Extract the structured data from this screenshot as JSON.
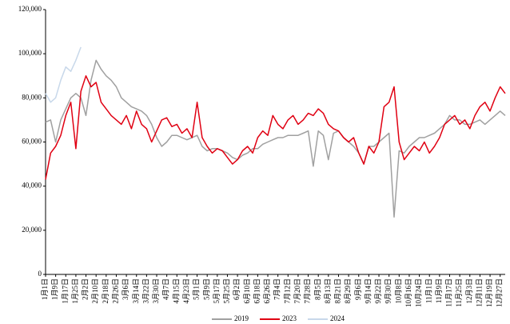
{
  "chart_data": {
    "type": "line",
    "categories": [
      "1月1日",
      null,
      "1月9日",
      null,
      "1月17日",
      null,
      "1月25日",
      null,
      "2月2日",
      null,
      "2月10日",
      null,
      "2月18日",
      null,
      "2月26日",
      null,
      "3月6日",
      null,
      "3月14日",
      null,
      "3月22日",
      null,
      "3月30日",
      null,
      "4月7日",
      null,
      "4月15日",
      null,
      "4月23日",
      null,
      "5月1日",
      null,
      "5月9日",
      null,
      "5月17日",
      null,
      "5月25日",
      null,
      "6月2日",
      null,
      "6月10日",
      null,
      "6月18日",
      null,
      "6月26日",
      null,
      "7月4日",
      null,
      "7月12日",
      null,
      "7月20日",
      null,
      "7月28日",
      null,
      "8月5日",
      null,
      "8月13日",
      null,
      "8月21日",
      null,
      "8月29日",
      null,
      "9月6日",
      null,
      "9月14日",
      null,
      "9月22日",
      null,
      "9月30日",
      null,
      "10月8日",
      null,
      "10月16日",
      null,
      "10月24日",
      null,
      "11月1日",
      null,
      "11月9日",
      null,
      "11月17日",
      null,
      "11月25日",
      null,
      "12月3日",
      null,
      "12月11日",
      null,
      "12月19日",
      null,
      "12月27日",
      null
    ],
    "series": [
      {
        "name": "2019",
        "color": "#a0a0a0",
        "values": [
          69000,
          70000,
          60000,
          70000,
          75000,
          80000,
          82000,
          80000,
          72000,
          88000,
          97000,
          93000,
          90000,
          88000,
          85000,
          80000,
          78000,
          76000,
          75000,
          74000,
          72000,
          68000,
          62000,
          58000,
          60000,
          63000,
          63000,
          62000,
          61000,
          62000,
          63000,
          58000,
          56000,
          57000,
          57000,
          56000,
          55000,
          53000,
          52000,
          54000,
          55000,
          57000,
          57000,
          59000,
          60000,
          61000,
          62000,
          62000,
          63000,
          63000,
          63000,
          64000,
          65000,
          49000,
          65000,
          63000,
          52000,
          64000,
          65000,
          62000,
          60000,
          58000,
          55000,
          50000,
          58000,
          58000,
          60000,
          62000,
          64000,
          26000,
          56000,
          55000,
          58000,
          60000,
          62000,
          62000,
          63000,
          64000,
          66000,
          68000,
          72000,
          70000,
          70000,
          68000,
          68000,
          69000,
          70000,
          68000,
          70000,
          72000,
          74000,
          72000
        ]
      },
      {
        "name": "2023",
        "color": "#e00012",
        "values": [
          43000,
          55000,
          58000,
          63000,
          72000,
          78000,
          57000,
          83000,
          90000,
          85000,
          87000,
          78000,
          75000,
          72000,
          70000,
          68000,
          72000,
          66000,
          74000,
          68000,
          66000,
          60000,
          65000,
          70000,
          71000,
          67000,
          68000,
          64000,
          66000,
          62000,
          78000,
          62000,
          58000,
          55000,
          57000,
          56000,
          53000,
          50000,
          52000,
          56000,
          58000,
          55000,
          62000,
          65000,
          63000,
          72000,
          68000,
          66000,
          70000,
          72000,
          68000,
          70000,
          73000,
          72000,
          75000,
          73000,
          68000,
          66000,
          65000,
          62000,
          60000,
          62000,
          55000,
          50000,
          58000,
          55000,
          60000,
          76000,
          78000,
          85000,
          60000,
          52000,
          55000,
          58000,
          56000,
          60000,
          55000,
          58000,
          62000,
          68000,
          70000,
          72000,
          68000,
          70000,
          66000,
          72000,
          76000,
          78000,
          74000,
          80000,
          85000,
          82000
        ]
      },
      {
        "name": "2024",
        "color": "#c8d8ea",
        "values": [
          82000,
          78000,
          80000,
          88000,
          94000,
          92000,
          97000,
          103000,
          null,
          null,
          null,
          null,
          null,
          null,
          null,
          null,
          null,
          null,
          null,
          null,
          null,
          null,
          null,
          null,
          null,
          null,
          null,
          null,
          null,
          null,
          null,
          null,
          null,
          null,
          null,
          null,
          null,
          null,
          null,
          null,
          null,
          null,
          null,
          null,
          null,
          null,
          null,
          null,
          null,
          null,
          null,
          null,
          null,
          null,
          null,
          null,
          null,
          null,
          null,
          null,
          null,
          null,
          null,
          null,
          null,
          null,
          null,
          null,
          null,
          null,
          null,
          null,
          null,
          null,
          null,
          null,
          null,
          null,
          null,
          null,
          null,
          null,
          null,
          null,
          null,
          null,
          null,
          null,
          null,
          null,
          null,
          null
        ]
      }
    ],
    "ylim": [
      0,
      120000
    ],
    "yticks": [
      0,
      {
        "value": 20000,
        "label": "20,000"
      },
      {
        "value": 40000,
        "label": "40,000"
      },
      {
        "value": 60000,
        "label": "60,000"
      },
      {
        "value": 80000,
        "label": "80,000"
      },
      {
        "value": 100000,
        "label": "100,000"
      },
      {
        "value": 120000,
        "label": "120,000"
      }
    ],
    "legend": "bottom"
  }
}
